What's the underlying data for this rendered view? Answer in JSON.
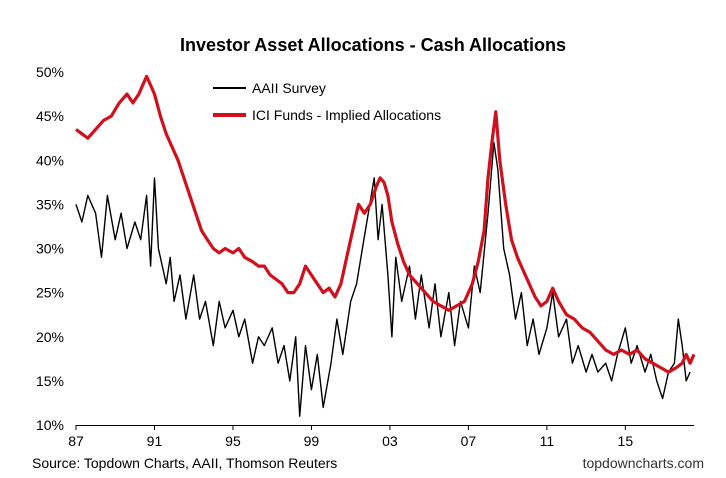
{
  "chart_data": {
    "type": "line",
    "title": "Investor Asset Allocations - Cash Allocations",
    "xlabel": "",
    "ylabel": "",
    "x_tick_labels": [
      "87",
      "91",
      "95",
      "99",
      "03",
      "07",
      "11",
      "15"
    ],
    "x_tick_years": [
      1987,
      1991,
      1995,
      1999,
      2003,
      2007,
      2011,
      2015
    ],
    "xlim": [
      1987,
      2018.5
    ],
    "ylim": [
      10,
      50
    ],
    "y_ticks": [
      10,
      15,
      20,
      25,
      30,
      35,
      40,
      45,
      50
    ],
    "y_tick_labels": [
      "10%",
      "15%",
      "20%",
      "25%",
      "30%",
      "35%",
      "40%",
      "45%",
      "50%"
    ],
    "legend_position": "top-center",
    "series": [
      {
        "name": "AAII Survey",
        "color": "#000000",
        "points": [
          [
            1987.0,
            35
          ],
          [
            1987.3,
            33
          ],
          [
            1987.6,
            36
          ],
          [
            1988.0,
            34
          ],
          [
            1988.3,
            29
          ],
          [
            1988.6,
            36
          ],
          [
            1989.0,
            31
          ],
          [
            1989.3,
            34
          ],
          [
            1989.6,
            30
          ],
          [
            1990.0,
            33
          ],
          [
            1990.3,
            31
          ],
          [
            1990.6,
            36
          ],
          [
            1990.8,
            28
          ],
          [
            1991.0,
            38
          ],
          [
            1991.2,
            30
          ],
          [
            1991.4,
            28
          ],
          [
            1991.6,
            26
          ],
          [
            1991.8,
            29
          ],
          [
            1992.0,
            24
          ],
          [
            1992.3,
            27
          ],
          [
            1992.6,
            22
          ],
          [
            1993.0,
            27
          ],
          [
            1993.3,
            22
          ],
          [
            1993.6,
            24
          ],
          [
            1994.0,
            19
          ],
          [
            1994.3,
            24
          ],
          [
            1994.6,
            21
          ],
          [
            1995.0,
            23
          ],
          [
            1995.3,
            20
          ],
          [
            1995.6,
            22
          ],
          [
            1996.0,
            17
          ],
          [
            1996.3,
            20
          ],
          [
            1996.6,
            19
          ],
          [
            1997.0,
            21
          ],
          [
            1997.3,
            17
          ],
          [
            1997.6,
            19
          ],
          [
            1997.9,
            15
          ],
          [
            1998.2,
            20
          ],
          [
            1998.4,
            11
          ],
          [
            1998.7,
            19
          ],
          [
            1999.0,
            14
          ],
          [
            1999.3,
            18
          ],
          [
            1999.6,
            12
          ],
          [
            2000.0,
            17
          ],
          [
            2000.3,
            22
          ],
          [
            2000.6,
            18
          ],
          [
            2001.0,
            24
          ],
          [
            2001.3,
            26
          ],
          [
            2001.6,
            30
          ],
          [
            2001.9,
            34
          ],
          [
            2002.2,
            38
          ],
          [
            2002.4,
            31
          ],
          [
            2002.6,
            35
          ],
          [
            2002.9,
            27
          ],
          [
            2003.1,
            20
          ],
          [
            2003.3,
            29
          ],
          [
            2003.6,
            24
          ],
          [
            2004.0,
            28
          ],
          [
            2004.3,
            22
          ],
          [
            2004.6,
            27
          ],
          [
            2005.0,
            21
          ],
          [
            2005.3,
            26
          ],
          [
            2005.6,
            20
          ],
          [
            2006.0,
            25
          ],
          [
            2006.3,
            19
          ],
          [
            2006.6,
            24
          ],
          [
            2007.0,
            21
          ],
          [
            2007.3,
            28
          ],
          [
            2007.6,
            25
          ],
          [
            2008.0,
            34
          ],
          [
            2008.3,
            42
          ],
          [
            2008.5,
            39
          ],
          [
            2008.8,
            30
          ],
          [
            2009.1,
            27
          ],
          [
            2009.4,
            22
          ],
          [
            2009.7,
            25
          ],
          [
            2010.0,
            19
          ],
          [
            2010.3,
            22
          ],
          [
            2010.6,
            18
          ],
          [
            2011.0,
            21
          ],
          [
            2011.3,
            25
          ],
          [
            2011.6,
            20
          ],
          [
            2012.0,
            22
          ],
          [
            2012.3,
            17
          ],
          [
            2012.6,
            19
          ],
          [
            2013.0,
            16
          ],
          [
            2013.3,
            18
          ],
          [
            2013.6,
            16
          ],
          [
            2014.0,
            17
          ],
          [
            2014.3,
            15
          ],
          [
            2014.6,
            18
          ],
          [
            2015.0,
            21
          ],
          [
            2015.3,
            17
          ],
          [
            2015.6,
            19
          ],
          [
            2016.0,
            16
          ],
          [
            2016.3,
            18
          ],
          [
            2016.6,
            15
          ],
          [
            2016.9,
            13
          ],
          [
            2017.2,
            16
          ],
          [
            2017.5,
            17
          ],
          [
            2017.7,
            22
          ],
          [
            2017.9,
            19
          ],
          [
            2018.1,
            15
          ],
          [
            2018.3,
            16
          ]
        ]
      },
      {
        "name": "ICI Funds - Implied Allocations",
        "color": "#d0101c",
        "points": [
          [
            1987.0,
            43.5
          ],
          [
            1987.3,
            43
          ],
          [
            1987.6,
            42.5
          ],
          [
            1988.0,
            43.5
          ],
          [
            1988.4,
            44.5
          ],
          [
            1988.8,
            45
          ],
          [
            1989.2,
            46.5
          ],
          [
            1989.6,
            47.5
          ],
          [
            1989.9,
            46.5
          ],
          [
            1990.2,
            47.5
          ],
          [
            1990.4,
            48.5
          ],
          [
            1990.6,
            49.5
          ],
          [
            1990.8,
            48.5
          ],
          [
            1991.0,
            47.5
          ],
          [
            1991.3,
            45
          ],
          [
            1991.6,
            43
          ],
          [
            1991.9,
            41.5
          ],
          [
            1992.2,
            40
          ],
          [
            1992.5,
            38
          ],
          [
            1992.8,
            36
          ],
          [
            1993.1,
            34
          ],
          [
            1993.4,
            32
          ],
          [
            1993.7,
            31
          ],
          [
            1994.0,
            30
          ],
          [
            1994.3,
            29.5
          ],
          [
            1994.6,
            30
          ],
          [
            1995.0,
            29.5
          ],
          [
            1995.3,
            30
          ],
          [
            1995.6,
            29
          ],
          [
            1996.0,
            28.5
          ],
          [
            1996.3,
            28
          ],
          [
            1996.6,
            28
          ],
          [
            1996.9,
            27
          ],
          [
            1997.2,
            26.5
          ],
          [
            1997.5,
            26
          ],
          [
            1997.8,
            25
          ],
          [
            1998.1,
            25
          ],
          [
            1998.4,
            26
          ],
          [
            1998.7,
            28
          ],
          [
            1999.0,
            27
          ],
          [
            1999.3,
            26
          ],
          [
            1999.6,
            25
          ],
          [
            1999.9,
            25.5
          ],
          [
            2000.2,
            24.5
          ],
          [
            2000.5,
            26
          ],
          [
            2000.8,
            29
          ],
          [
            2001.1,
            32
          ],
          [
            2001.4,
            35
          ],
          [
            2001.7,
            34
          ],
          [
            2002.0,
            35
          ],
          [
            2002.3,
            37
          ],
          [
            2002.5,
            38
          ],
          [
            2002.7,
            37.5
          ],
          [
            2002.9,
            36
          ],
          [
            2003.1,
            33
          ],
          [
            2003.4,
            30.5
          ],
          [
            2003.7,
            28.5
          ],
          [
            2004.0,
            27
          ],
          [
            2004.4,
            26
          ],
          [
            2004.8,
            25
          ],
          [
            2005.2,
            24
          ],
          [
            2005.6,
            23.5
          ],
          [
            2006.0,
            23
          ],
          [
            2006.4,
            23.5
          ],
          [
            2006.8,
            24
          ],
          [
            2007.2,
            26
          ],
          [
            2007.5,
            28.5
          ],
          [
            2007.8,
            32
          ],
          [
            2008.0,
            38
          ],
          [
            2008.2,
            42
          ],
          [
            2008.4,
            45.5
          ],
          [
            2008.6,
            40
          ],
          [
            2008.9,
            35
          ],
          [
            2009.2,
            31
          ],
          [
            2009.5,
            29
          ],
          [
            2009.8,
            27.5
          ],
          [
            2010.1,
            26
          ],
          [
            2010.4,
            24.5
          ],
          [
            2010.7,
            23.5
          ],
          [
            2011.0,
            24
          ],
          [
            2011.3,
            25.5
          ],
          [
            2011.6,
            24
          ],
          [
            2012.0,
            22.5
          ],
          [
            2012.4,
            22
          ],
          [
            2012.8,
            21
          ],
          [
            2013.2,
            20.5
          ],
          [
            2013.6,
            19.5
          ],
          [
            2014.0,
            18.5
          ],
          [
            2014.4,
            18
          ],
          [
            2014.8,
            18.5
          ],
          [
            2015.2,
            18
          ],
          [
            2015.6,
            18.5
          ],
          [
            2016.0,
            17.5
          ],
          [
            2016.4,
            17
          ],
          [
            2016.8,
            16.5
          ],
          [
            2017.2,
            16
          ],
          [
            2017.6,
            16.5
          ],
          [
            2017.9,
            17
          ],
          [
            2018.1,
            18
          ],
          [
            2018.3,
            17
          ],
          [
            2018.5,
            18
          ]
        ]
      }
    ]
  },
  "footer": {
    "source": "Source: Topdown Charts, AAII, Thomson Reuters",
    "credit": "topdowncharts.com"
  }
}
